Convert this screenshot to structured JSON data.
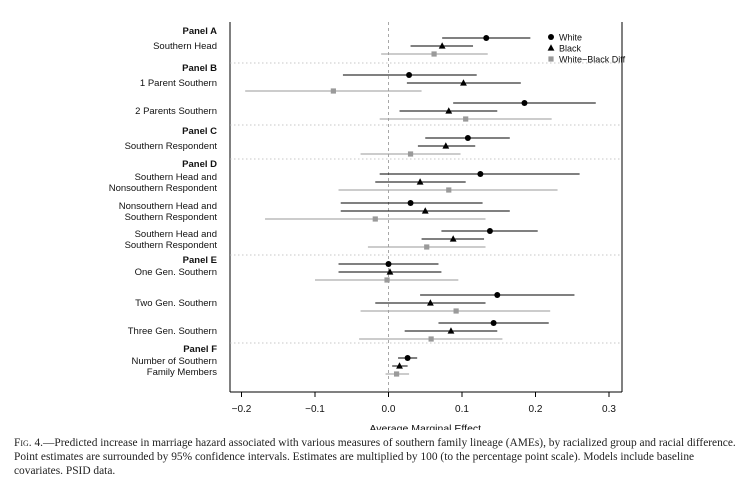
{
  "chart_data": {
    "type": "forest",
    "xlabel": "Average Marginal Effect",
    "xlim": [
      -0.2,
      0.3
    ],
    "xticks": [
      -0.2,
      -0.1,
      0.0,
      0.1,
      0.2,
      0.3
    ],
    "xtick_labels": [
      "−0.2",
      "−0.1",
      "0.0",
      "0.1",
      "0.2",
      "0.3"
    ],
    "reference_line": 0,
    "legend": [
      {
        "name": "White",
        "marker": "circle",
        "color": "#000000"
      },
      {
        "name": "Black",
        "marker": "triangle",
        "color": "#000000"
      },
      {
        "name": "White−Black Diff",
        "marker": "square",
        "color": "#999999"
      }
    ],
    "legend_position": "top-right",
    "panels": [
      {
        "label": "Panel A",
        "rows": [
          {
            "label": [
              "Southern Head"
            ],
            "white": {
              "est": 0.133,
              "lo": 0.073,
              "hi": 0.193
            },
            "black": {
              "est": 0.073,
              "lo": 0.03,
              "hi": 0.115
            },
            "diff": {
              "est": 0.062,
              "lo": -0.01,
              "hi": 0.135
            }
          }
        ]
      },
      {
        "label": "Panel B",
        "rows": [
          {
            "label": [
              "1 Parent Southern"
            ],
            "white": {
              "est": 0.028,
              "lo": -0.062,
              "hi": 0.12
            },
            "black": {
              "est": 0.102,
              "lo": 0.025,
              "hi": 0.18
            },
            "diff": {
              "est": -0.075,
              "lo": -0.195,
              "hi": 0.045
            }
          },
          {
            "label": [
              "2 Parents Southern"
            ],
            "white": {
              "est": 0.185,
              "lo": 0.088,
              "hi": 0.282
            },
            "black": {
              "est": 0.082,
              "lo": 0.015,
              "hi": 0.148
            },
            "diff": {
              "est": 0.105,
              "lo": -0.012,
              "hi": 0.222
            }
          }
        ]
      },
      {
        "label": "Panel C",
        "rows": [
          {
            "label": [
              "Southern Respondent"
            ],
            "white": {
              "est": 0.108,
              "lo": 0.05,
              "hi": 0.165
            },
            "black": {
              "est": 0.078,
              "lo": 0.04,
              "hi": 0.118
            },
            "diff": {
              "est": 0.03,
              "lo": -0.038,
              "hi": 0.098
            }
          }
        ]
      },
      {
        "label": "Panel D",
        "rows": [
          {
            "label": [
              "Southern Head and",
              "Nonsouthern Respondent"
            ],
            "white": {
              "est": 0.125,
              "lo": -0.012,
              "hi": 0.26
            },
            "black": {
              "est": 0.043,
              "lo": -0.018,
              "hi": 0.105
            },
            "diff": {
              "est": 0.082,
              "lo": -0.068,
              "hi": 0.23
            }
          },
          {
            "label": [
              "Nonsouthern Head and",
              "Southern Respondent"
            ],
            "white": {
              "est": 0.03,
              "lo": -0.065,
              "hi": 0.128
            },
            "black": {
              "est": 0.05,
              "lo": -0.065,
              "hi": 0.165
            },
            "diff": {
              "est": -0.018,
              "lo": -0.168,
              "hi": 0.132
            }
          },
          {
            "label": [
              "Southern Head and",
              "Southern Respondent"
            ],
            "white": {
              "est": 0.138,
              "lo": 0.072,
              "hi": 0.203
            },
            "black": {
              "est": 0.088,
              "lo": 0.045,
              "hi": 0.13
            },
            "diff": {
              "est": 0.052,
              "lo": -0.028,
              "hi": 0.132
            }
          }
        ]
      },
      {
        "label": "Panel E",
        "rows": [
          {
            "label": [
              "One Gen. Southern"
            ],
            "white": {
              "est": 0.0,
              "lo": -0.068,
              "hi": 0.068
            },
            "black": {
              "est": 0.002,
              "lo": -0.068,
              "hi": 0.072
            },
            "diff": {
              "est": -0.002,
              "lo": -0.1,
              "hi": 0.095
            }
          },
          {
            "label": [
              "Two Gen. Southern"
            ],
            "white": {
              "est": 0.148,
              "lo": 0.043,
              "hi": 0.253
            },
            "black": {
              "est": 0.057,
              "lo": -0.018,
              "hi": 0.132
            },
            "diff": {
              "est": 0.092,
              "lo": -0.038,
              "hi": 0.22
            }
          },
          {
            "label": [
              "Three Gen. Southern"
            ],
            "white": {
              "est": 0.143,
              "lo": 0.068,
              "hi": 0.218
            },
            "black": {
              "est": 0.085,
              "lo": 0.022,
              "hi": 0.148
            },
            "diff": {
              "est": 0.058,
              "lo": -0.04,
              "hi": 0.155
            }
          }
        ]
      },
      {
        "label": "Panel F",
        "rows": [
          {
            "label": [
              "Number of Southern",
              "Family Members"
            ],
            "white": {
              "est": 0.026,
              "lo": 0.013,
              "hi": 0.039
            },
            "black": {
              "est": 0.015,
              "lo": 0.005,
              "hi": 0.026
            },
            "diff": {
              "est": 0.011,
              "lo": -0.004,
              "hi": 0.028
            }
          }
        ]
      }
    ]
  },
  "caption": {
    "figure_label": "Fig. 4.",
    "text": "—Predicted increase in marriage hazard associated with various measures of southern family lineage (AMEs), by racialized group and racial difference. Point estimates are surrounded by 95% confidence intervals. Estimates are multiplied by 100 (to the percentage point scale). Models include baseline covariates. PSID data."
  },
  "colors": {
    "white_series": "#000000",
    "black_series": "#000000",
    "diff_series": "#9a9a9a",
    "separator": "#b5b5b5",
    "zero_line": "#a8a8a8"
  }
}
